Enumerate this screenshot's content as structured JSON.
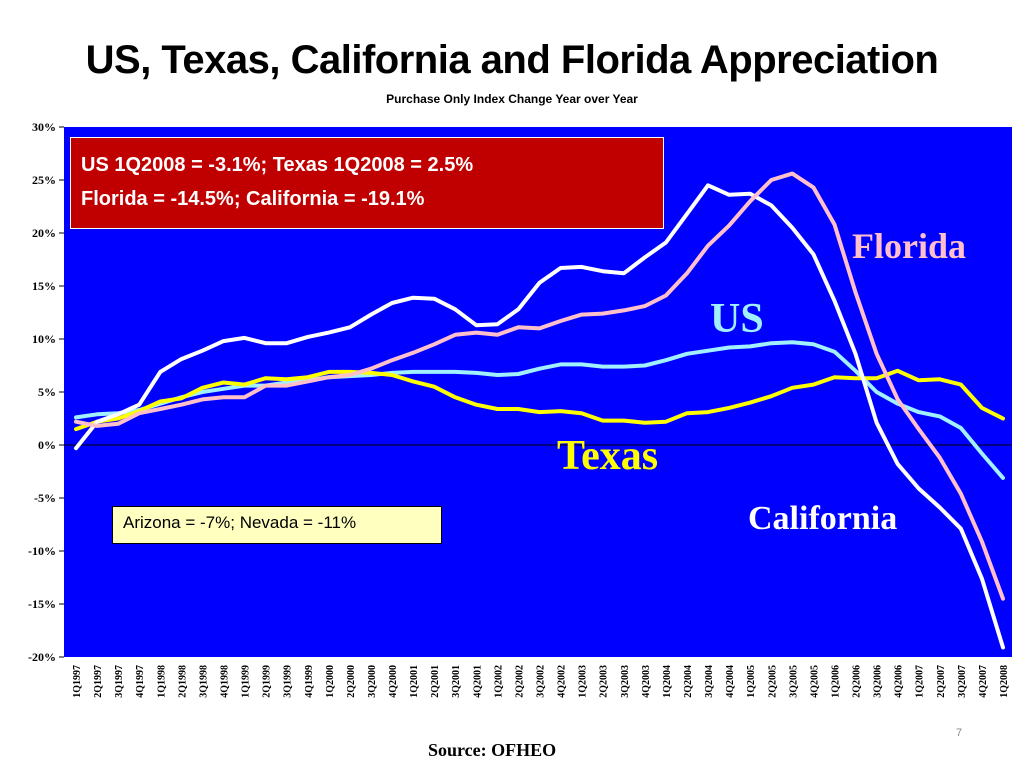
{
  "slide": {
    "title": "US, Texas, California and Florida Appreciation",
    "subtitle": "Purchase Only Index Change Year over Year",
    "source": "Source:  OFHEO",
    "page_number": "7"
  },
  "callouts": {
    "red_line1": "US 1Q2008 = -3.1%; Texas 1Q2008 = 2.5%",
    "red_line2": "Florida = -14.5%; California = -19.1%",
    "yellow": "Arizona = -7%; Nevada = -11%"
  },
  "colors": {
    "plot_bg": "#0000ff",
    "US": "#a0f0ff",
    "Texas": "#ffff00",
    "California": "#ffffff",
    "Florida": "#ffc0cb",
    "red_box": "#c00000",
    "yellow_box": "#ffffc0"
  },
  "chart_data": {
    "type": "line",
    "title": "US, Texas, California and Florida Appreciation",
    "subtitle": "Purchase Only Index Change Year over Year",
    "ylim": [
      -20,
      30
    ],
    "yticks": [
      30,
      25,
      20,
      15,
      10,
      5,
      0,
      -5,
      -10,
      -15,
      -20
    ],
    "ytick_labels": [
      "30%",
      "25%",
      "20%",
      "15%",
      "10%",
      "5%",
      "0%",
      "-5%",
      "-10%",
      "-15%",
      "-20%"
    ],
    "grid": false,
    "categories": [
      "1Q1997",
      "2Q1997",
      "3Q1997",
      "4Q1997",
      "1Q1998",
      "2Q1998",
      "3Q1998",
      "4Q1998",
      "1Q1999",
      "2Q1999",
      "3Q1999",
      "4Q1999",
      "1Q2000",
      "2Q2000",
      "3Q2000",
      "4Q2000",
      "1Q2001",
      "2Q2001",
      "3Q2001",
      "4Q2001",
      "1Q2002",
      "2Q2002",
      "3Q2002",
      "4Q2002",
      "1Q2003",
      "2Q2003",
      "3Q2003",
      "4Q2003",
      "1Q2004",
      "2Q2004",
      "3Q2004",
      "4Q2004",
      "1Q2005",
      "2Q2005",
      "3Q2005",
      "4Q2005",
      "1Q2006",
      "2Q2006",
      "3Q2006",
      "4Q2006",
      "1Q2007",
      "2Q2007",
      "3Q2007",
      "4Q2007",
      "1Q2008"
    ],
    "series": [
      {
        "name": "US",
        "color": "#a0f0ff",
        "values": [
          2.6,
          2.9,
          3.0,
          3.3,
          3.9,
          4.5,
          5.0,
          5.3,
          5.6,
          5.6,
          5.9,
          6.1,
          6.4,
          6.5,
          6.6,
          6.8,
          6.9,
          6.9,
          6.9,
          6.8,
          6.6,
          6.7,
          7.2,
          7.6,
          7.6,
          7.4,
          7.4,
          7.5,
          8.0,
          8.6,
          8.9,
          9.2,
          9.3,
          9.6,
          9.7,
          9.5,
          8.8,
          7.0,
          5.0,
          3.9,
          3.1,
          2.7,
          1.6,
          -0.8,
          -3.1
        ]
      },
      {
        "name": "Texas",
        "color": "#ffff00",
        "values": [
          1.5,
          2.2,
          2.5,
          3.2,
          4.1,
          4.4,
          5.4,
          5.9,
          5.7,
          6.3,
          6.2,
          6.4,
          6.9,
          6.9,
          6.8,
          6.6,
          6.0,
          5.5,
          4.5,
          3.8,
          3.4,
          3.4,
          3.1,
          3.2,
          3.0,
          2.3,
          2.3,
          2.1,
          2.2,
          3.0,
          3.1,
          3.5,
          4.0,
          4.6,
          5.4,
          5.7,
          6.4,
          6.3,
          6.3,
          7.0,
          6.1,
          6.2,
          5.7,
          3.5,
          2.5
        ]
      },
      {
        "name": "California",
        "color": "#ffffff",
        "values": [
          -0.3,
          2.2,
          2.9,
          3.8,
          6.9,
          8.1,
          8.9,
          9.8,
          10.1,
          9.6,
          9.6,
          10.2,
          10.6,
          11.1,
          12.3,
          13.4,
          13.9,
          13.8,
          12.8,
          11.3,
          11.4,
          12.8,
          15.3,
          16.7,
          16.8,
          16.4,
          16.2,
          17.7,
          19.1,
          21.8,
          24.5,
          23.6,
          23.7,
          22.6,
          20.5,
          18.0,
          13.6,
          8.6,
          2.1,
          -1.8,
          -4.1,
          -5.9,
          -7.9,
          -12.6,
          -19.1
        ]
      },
      {
        "name": "Florida",
        "color": "#ffc0cb",
        "values": [
          2.2,
          1.8,
          2.0,
          3.0,
          3.4,
          3.8,
          4.3,
          4.5,
          4.5,
          5.6,
          5.6,
          6.0,
          6.4,
          6.6,
          7.2,
          8.0,
          8.7,
          9.5,
          10.4,
          10.6,
          10.4,
          11.1,
          11.0,
          11.7,
          12.3,
          12.4,
          12.7,
          13.1,
          14.1,
          16.2,
          18.8,
          20.7,
          23.0,
          25.0,
          25.6,
          24.3,
          20.8,
          14.4,
          8.6,
          4.3,
          1.5,
          -1.2,
          -4.6,
          -9.1,
          -14.5
        ]
      }
    ]
  }
}
